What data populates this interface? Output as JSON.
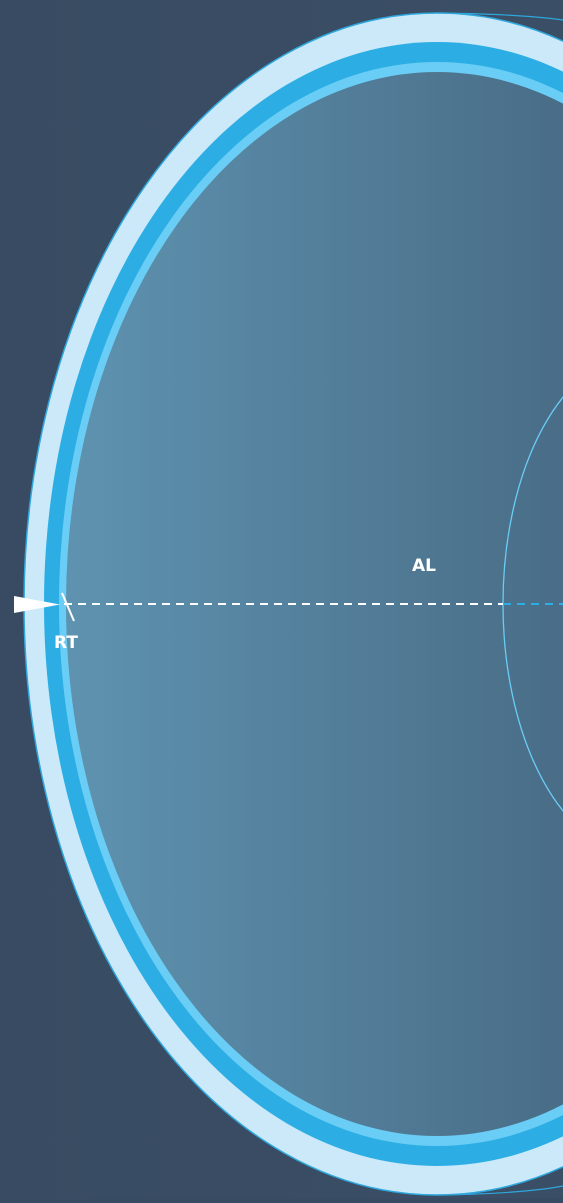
{
  "labels": {
    "axial_length": "AL",
    "retinal_thickness": "RT"
  },
  "colors": {
    "background": "#384b62",
    "sclera_outer": "#cbe9f9",
    "sclera_edge": "#2fa7dc",
    "choroid": "#2caee4",
    "retina": "#69cdf6",
    "vitreous_left": "#5e93b0",
    "vitreous_right": "#3f5a73",
    "lens_outline": "#69cdf6",
    "axis_line": "#ffffff",
    "axis_line_inner": "#2caee4",
    "pointer": "#ffffff"
  }
}
